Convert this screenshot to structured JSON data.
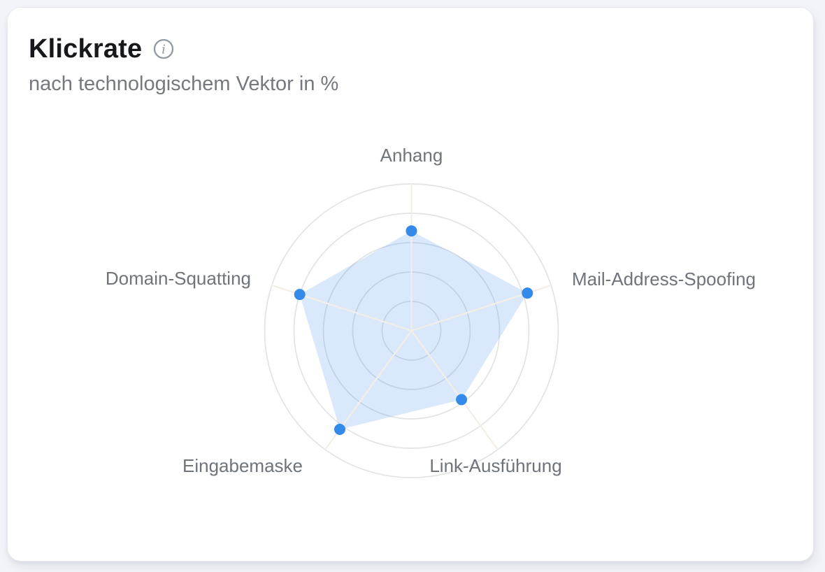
{
  "page": {
    "background_color": "#f2f4f9"
  },
  "card": {
    "title": "Klickrate",
    "subtitle": "nach technologischem Vektor in %",
    "icons": {
      "info": {
        "name": "circle-info-icon",
        "glyph": "i",
        "color": "#9199a3"
      }
    }
  },
  "chart_data": {
    "type": "radar",
    "title": "Klickrate",
    "subtitle": "nach technologischem Vektor in %",
    "value_unit": "%",
    "categories": [
      "Anhang",
      "Mail-Address-Spoofing",
      "Link-Ausführung",
      "Eingabemaske",
      "Domain-Squatting"
    ],
    "series": [
      {
        "name": "Klickrate",
        "values": [
          68,
          83,
          58,
          83,
          80
        ]
      }
    ],
    "scale": {
      "min": 0,
      "max": 100,
      "rings": 5,
      "tick_labels_visible": false
    },
    "grid_shape": "circular",
    "legend": "none",
    "colors": {
      "point": "#338ae8",
      "fill": "rgba(51,138,232,0.19)",
      "grid_ring": "#e2e3e5",
      "axis_line": "#f3eee6",
      "category_label": "#6f747b"
    }
  }
}
